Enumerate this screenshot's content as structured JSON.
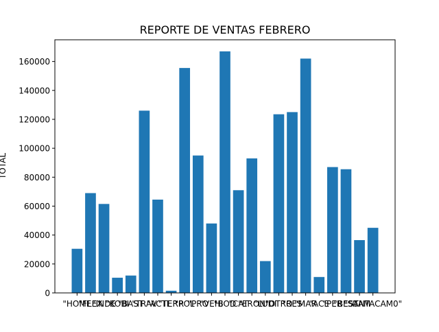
{
  "chart_data": {
    "type": "bar",
    "title": "REPORTE DE VENTAS FEBRERO",
    "xlabel": "",
    "ylabel": "TOTAL",
    "ylim": [
      0,
      175000
    ],
    "yticks": [
      0,
      20000,
      40000,
      60000,
      80000,
      100000,
      120000,
      140000,
      160000
    ],
    "ytick_labels": [
      "0",
      "20000",
      "40000",
      "60000",
      "80000",
      "100000",
      "120000",
      "140000",
      "160000"
    ],
    "grid": false,
    "bar_color": "#1f77b4",
    "categories": [
      "\"HOME",
      "\"FLEX",
      "\"INDE",
      "\"KOBI",
      "\"BAST",
      "\"TRAV",
      "\"ACTI",
      "\"TERR",
      "\"POL",
      "\"PRO",
      "\"VEHI",
      "\"BOD",
      "\"CAT",
      "\"ERON",
      "\"LUDI",
      "\"OTRO",
      "\"RES",
      "\"MAR",
      "\"ACE",
      "\"PER",
      "\"BEST",
      "\"CAM",
      "\"SANTACAM0\""
    ],
    "values": [
      30500,
      69000,
      61500,
      10500,
      12000,
      126000,
      64500,
      1500,
      155500,
      95000,
      48000,
      167000,
      71000,
      93000,
      22000,
      123500,
      125000,
      162000,
      11000,
      87000,
      85500,
      36500,
      45000
    ]
  }
}
